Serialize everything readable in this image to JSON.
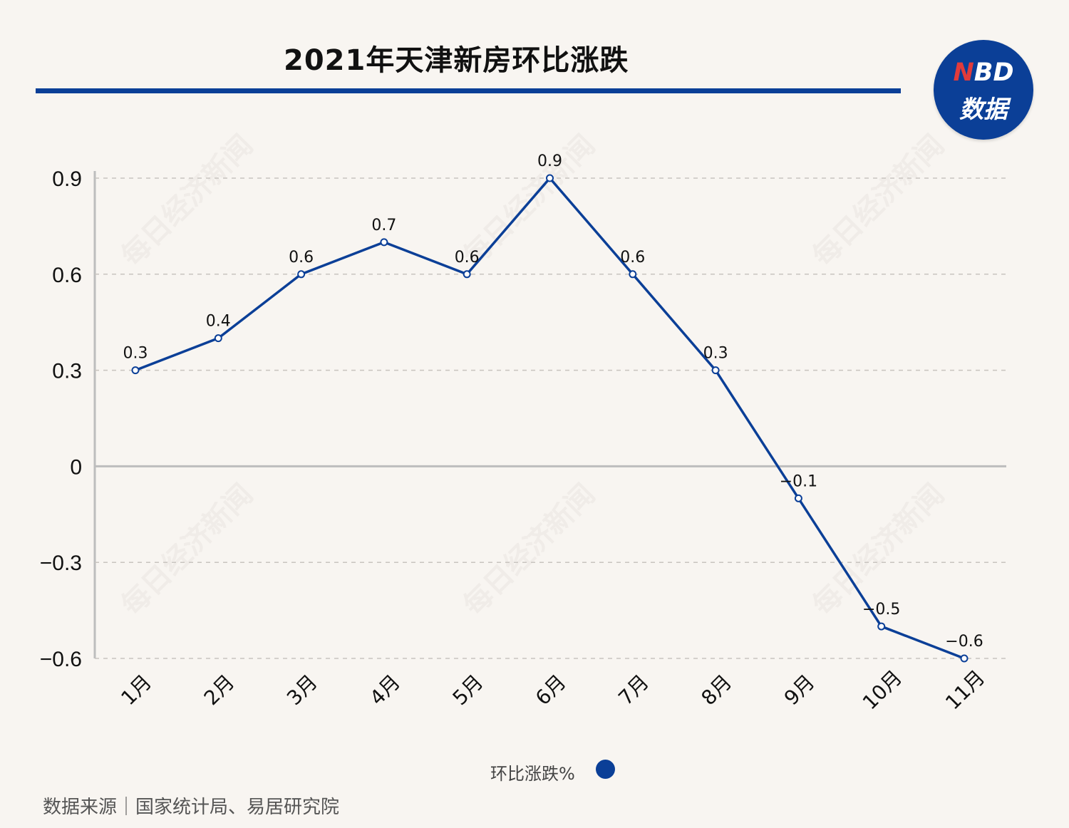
{
  "title": "2021年天津新房环比涨跌",
  "logo": {
    "line1_accent": "N",
    "line1_rest": "BD",
    "line2": "数据"
  },
  "watermark": "每日经济新闻",
  "source": "数据来源｜国家统计局、易居研究院",
  "legend": {
    "label": "环比涨跌%",
    "color": "#0b3f97"
  },
  "colors": {
    "line": "#0b3f97",
    "grid": "#c8c4bf",
    "axis": "#bdbdbd"
  },
  "chart_data": {
    "type": "line",
    "categories": [
      "1月",
      "2月",
      "3月",
      "4月",
      "5月",
      "6月",
      "7月",
      "8月",
      "9月",
      "10月",
      "11月"
    ],
    "series": [
      {
        "name": "环比涨跌%",
        "values": [
          0.3,
          0.4,
          0.6,
          0.7,
          0.6,
          0.9,
          0.6,
          0.3,
          -0.1,
          -0.5,
          -0.6
        ]
      }
    ],
    "data_labels": [
      "0.3",
      "0.4",
      "0.6",
      "0.7",
      "0.6",
      "0.9",
      "0.6",
      "0.3",
      "−0.1",
      "−0.5",
      "−0.6"
    ],
    "yticks": [
      0.9,
      0.6,
      0.3,
      0,
      -0.3,
      -0.6
    ],
    "ytick_labels": [
      "0.9",
      "0.6",
      "0.3",
      "0",
      "−0.3",
      "−0.6"
    ],
    "ylim": [
      -0.6,
      0.9
    ],
    "grid": true,
    "legend_position": "bottom-center"
  }
}
